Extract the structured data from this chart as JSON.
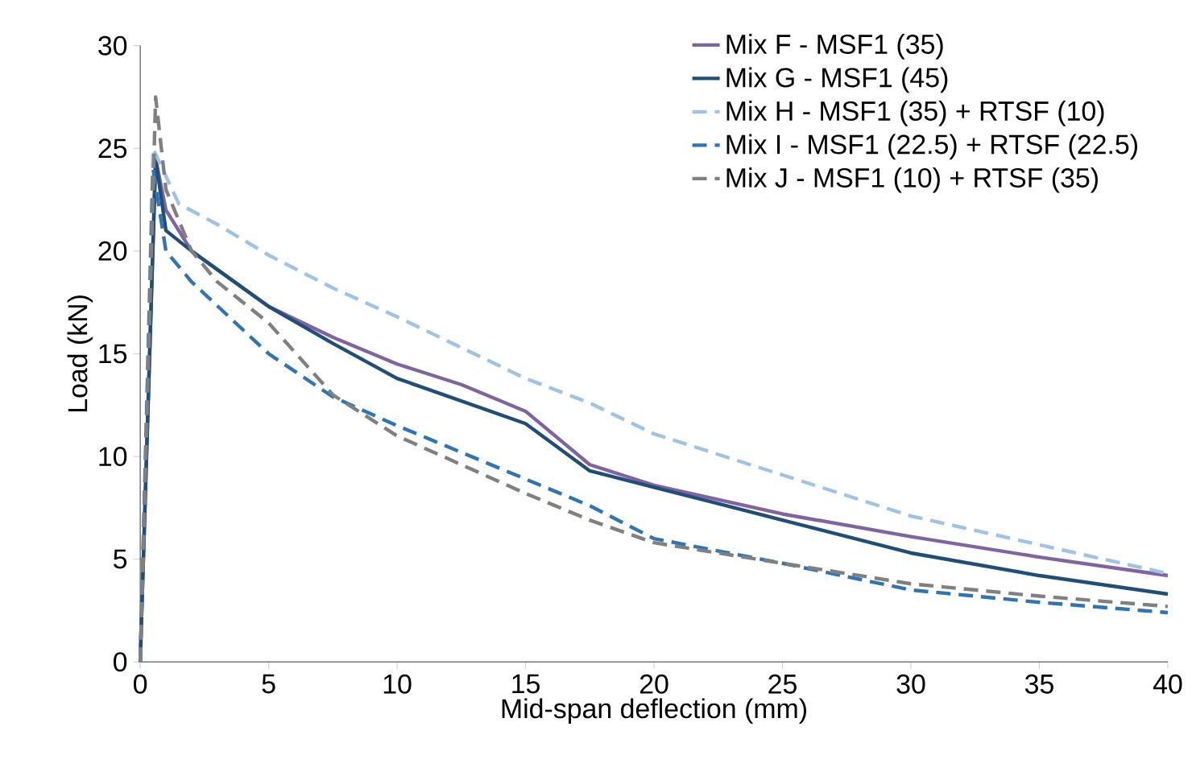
{
  "chart_data": {
    "type": "line",
    "xlabel": "Mid-span deflection (mm)",
    "ylabel": "Load (kN)",
    "xlim": [
      0,
      40
    ],
    "ylim": [
      0,
      30
    ],
    "xticks": [
      0,
      5,
      10,
      15,
      20,
      25,
      30,
      35,
      40
    ],
    "yticks": [
      0,
      5,
      10,
      15,
      20,
      25,
      30
    ],
    "legend": "top right",
    "grid": false,
    "marker": "none",
    "series": [
      {
        "name": "Mix F - MSF1 (35)",
        "color": "#8064a2",
        "line_style": "solid",
        "x": [
          0,
          0.6,
          1,
          2,
          5,
          7.5,
          10,
          12.5,
          15,
          17.5,
          20,
          25,
          30,
          35,
          40
        ],
        "values": [
          0,
          24.5,
          22,
          20,
          17.3,
          15.8,
          14.5,
          13.5,
          12.2,
          9.6,
          8.6,
          7.2,
          6.1,
          5.1,
          4.2
        ]
      },
      {
        "name": "Mix G - MSF1 (45)",
        "color": "#1f4e79",
        "line_style": "solid",
        "x": [
          0,
          0.6,
          1,
          2,
          5,
          7.5,
          10,
          12.5,
          15,
          17.5,
          20,
          22.5,
          25,
          30,
          35,
          40
        ],
        "values": [
          0,
          24.5,
          21,
          20,
          17.3,
          15.5,
          13.8,
          12.7,
          11.6,
          9.3,
          8.5,
          7.7,
          6.9,
          5.3,
          4.2,
          3.3
        ]
      },
      {
        "name": "Mix H - MSF1 (35) + RTSF (10)",
        "color": "#9dc3e6",
        "line_style": "dashed",
        "x": [
          0,
          0.5,
          1.5,
          3,
          5,
          7.5,
          10,
          12.5,
          15,
          17.5,
          20,
          25,
          30,
          35,
          40
        ],
        "values": [
          0,
          25,
          22.3,
          21.3,
          19.8,
          18.2,
          16.8,
          15.3,
          13.8,
          12.6,
          11.1,
          9.1,
          7.1,
          5.7,
          4.3
        ]
      },
      {
        "name": "Mix I - MSF1 (22.5) + RTSF (22.5)",
        "color": "#2e75b6",
        "line_style": "dashed",
        "x": [
          0,
          0.5,
          1,
          2,
          5,
          7.5,
          10,
          12.5,
          15,
          17.5,
          20,
          25,
          30,
          35,
          40
        ],
        "values": [
          0,
          24,
          20,
          18.5,
          15,
          12.9,
          11.5,
          10.2,
          8.9,
          7.6,
          6.0,
          4.8,
          3.5,
          2.9,
          2.4
        ]
      },
      {
        "name": "Mix J - MSF1 (10) + RTSF (35)",
        "color": "#808080",
        "line_style": "dashed",
        "x": [
          0,
          0.6,
          1,
          2,
          3,
          5,
          7.5,
          10,
          12.5,
          15,
          17.5,
          20,
          25,
          30,
          35,
          40
        ],
        "values": [
          0,
          27.5,
          23,
          20,
          18.5,
          16.5,
          13,
          11,
          9.6,
          8.2,
          6.9,
          5.8,
          4.8,
          3.8,
          3.2,
          2.7
        ]
      }
    ]
  }
}
